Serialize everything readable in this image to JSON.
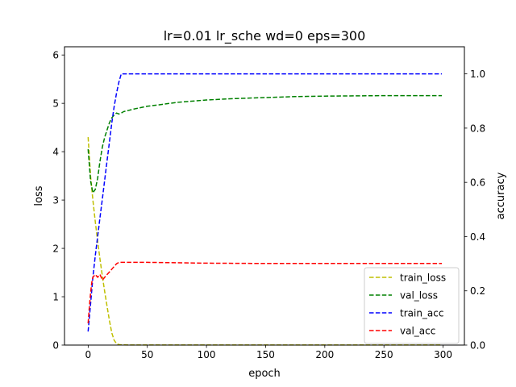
{
  "chart_data": {
    "type": "line",
    "title": "lr=0.01 lr_sche wd=0 eps=300",
    "xlabel": "epoch",
    "ylabel_left": "loss",
    "ylabel_right": "accuracy",
    "xlim": [
      -20,
      318
    ],
    "ylim_left": [
      0,
      6.17
    ],
    "ylim_right": [
      0,
      1.1
    ],
    "x_ticks": [
      0,
      50,
      100,
      150,
      200,
      250,
      300
    ],
    "y_left_ticks": [
      0,
      1,
      2,
      3,
      4,
      5,
      6
    ],
    "y_right_ticks": [
      "0.0",
      "0.2",
      "0.4",
      "0.6",
      "0.8",
      "1.0"
    ],
    "grid": false,
    "legend_position": "lower-right",
    "series": [
      {
        "name": "train_loss",
        "axis": "left",
        "color": "#bfbf00",
        "x": [
          0,
          2,
          4,
          6,
          8,
          10,
          12,
          14,
          16,
          18,
          20,
          22,
          24,
          26,
          28,
          30,
          50,
          100,
          150,
          200,
          250,
          299
        ],
        "y": [
          4.3,
          3.5,
          3.0,
          2.55,
          2.15,
          1.78,
          1.42,
          1.1,
          0.8,
          0.5,
          0.25,
          0.1,
          0.03,
          0.01,
          0.005,
          0.003,
          0.002,
          0.001,
          0.001,
          0.001,
          0.001,
          0.001
        ]
      },
      {
        "name": "val_loss",
        "axis": "left",
        "color": "#008000",
        "x": [
          0,
          2,
          4,
          6,
          8,
          10,
          12,
          14,
          16,
          18,
          20,
          22,
          24,
          26,
          28,
          30,
          40,
          50,
          60,
          75,
          100,
          125,
          150,
          175,
          200,
          250,
          299
        ],
        "y": [
          4.05,
          3.4,
          3.15,
          3.22,
          3.45,
          3.8,
          4.1,
          4.3,
          4.45,
          4.6,
          4.7,
          4.76,
          4.8,
          4.78,
          4.8,
          4.83,
          4.89,
          4.94,
          4.97,
          5.02,
          5.07,
          5.1,
          5.12,
          5.14,
          5.15,
          5.16,
          5.16
        ]
      },
      {
        "name": "train_acc",
        "axis": "right",
        "color": "#0000ff",
        "x": [
          0,
          2,
          4,
          6,
          8,
          10,
          12,
          14,
          16,
          18,
          20,
          22,
          24,
          26,
          28,
          30,
          50,
          100,
          150,
          200,
          250,
          299
        ],
        "y": [
          0.05,
          0.15,
          0.25,
          0.33,
          0.4,
          0.47,
          0.54,
          0.61,
          0.68,
          0.75,
          0.82,
          0.88,
          0.93,
          0.97,
          1.0,
          1.0,
          1.0,
          1.0,
          1.0,
          1.0,
          1.0,
          1.0
        ]
      },
      {
        "name": "val_acc",
        "axis": "right",
        "color": "#ff0000",
        "x": [
          0,
          1,
          2,
          3,
          4,
          6,
          8,
          10,
          12,
          14,
          16,
          18,
          20,
          22,
          24,
          26,
          28,
          30,
          50,
          100,
          150,
          200,
          250,
          299
        ],
        "y": [
          0.08,
          0.14,
          0.19,
          0.23,
          0.25,
          0.26,
          0.25,
          0.26,
          0.24,
          0.25,
          0.26,
          0.27,
          0.28,
          0.29,
          0.3,
          0.305,
          0.305,
          0.305,
          0.305,
          0.302,
          0.301,
          0.301,
          0.301,
          0.301
        ]
      }
    ]
  }
}
